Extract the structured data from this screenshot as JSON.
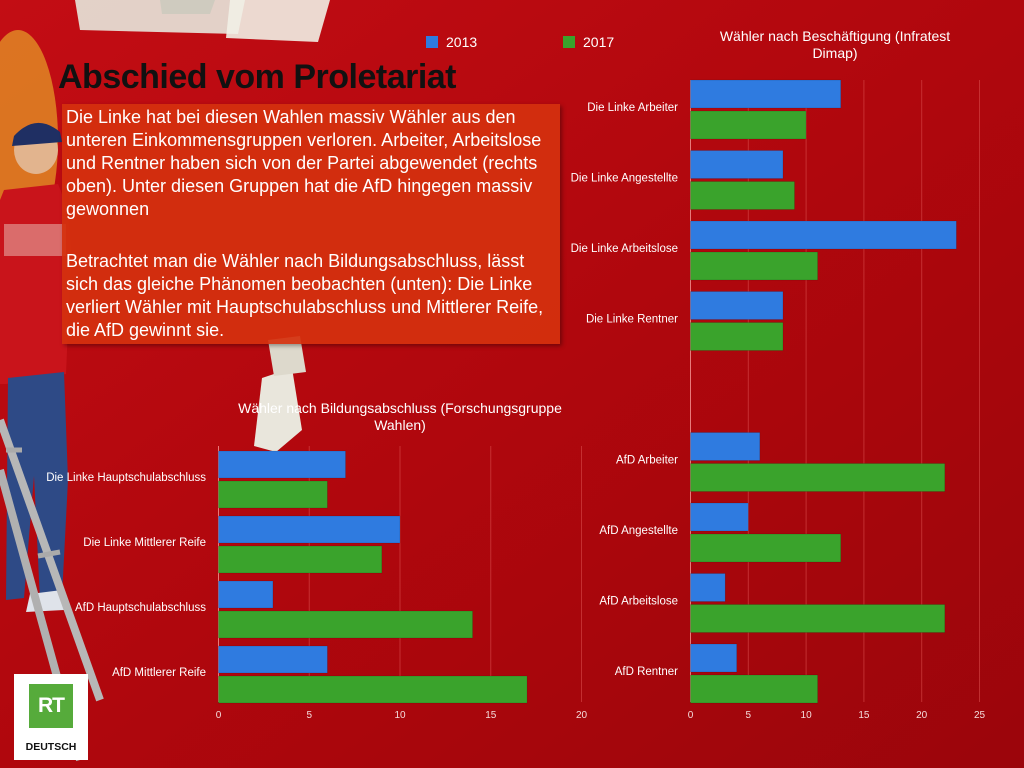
{
  "slide": {
    "title": "Abschied vom Proletariat",
    "paragraph1": "Die Linke hat bei diesen Wahlen massiv Wähler aus den unteren Einkommensgruppen verloren. Arbeiter, Arbeitslose und  Rentner haben sich von der Partei abgewendet (rechts oben). Unter diesen Gruppen hat die AfD hingegen massiv gewonnen",
    "paragraph2": "Betrachtet man die Wähler nach Bildungsabschluss, lässt sich das gleiche Phänomen beobachten (unten): Die Linke verliert Wähler mit Hauptschulabschluss und Mittlerer Reife, die AfD gewinnt sie."
  },
  "legend": [
    {
      "label": "2013",
      "color": "#2f7be0"
    },
    {
      "label": "2017",
      "color": "#3aa32c"
    }
  ],
  "logo": {
    "mark": "RT",
    "text": "DEUTSCH"
  },
  "colors": {
    "background": "#b5080f",
    "series_2013": "#2f7be0",
    "series_2017": "#3aa32c"
  },
  "chart_data": [
    {
      "type": "bar",
      "orientation": "horizontal",
      "title": "Wähler nach Beschäftigung (Infratest Dimap)",
      "categories": [
        "Die Linke Arbeiter",
        "Die Linke Angestellte",
        "Die Linke Arbeitslose",
        "Die Linke Rentner",
        "",
        "AfD Arbeiter",
        "AfD Angestellte",
        "AfD Arbeitslose",
        "AfD Rentner"
      ],
      "series": [
        {
          "name": "2013",
          "values": [
            13,
            8,
            23,
            8,
            null,
            6,
            5,
            3,
            4
          ]
        },
        {
          "name": "2017",
          "values": [
            10,
            9,
            11,
            8,
            null,
            22,
            13,
            22,
            11
          ]
        }
      ],
      "xlim": [
        0,
        25
      ],
      "xticks": [
        0,
        5,
        10,
        15,
        20,
        25
      ],
      "grid": true,
      "legend": "top"
    },
    {
      "type": "bar",
      "orientation": "horizontal",
      "title": "Wähler nach Bildungsabschluss (Forschungsgruppe Wahlen)",
      "categories": [
        "Die Linke Hauptschulabschluss",
        "Die Linke Mittlerer Reife",
        "AfD Hauptschulabschluss",
        "AfD Mittlerer Reife"
      ],
      "series": [
        {
          "name": "2013",
          "values": [
            7,
            10,
            3,
            6
          ]
        },
        {
          "name": "2017",
          "values": [
            6,
            9,
            14,
            17
          ]
        }
      ],
      "xlim": [
        0,
        20
      ],
      "xticks": [
        0,
        5,
        10,
        15,
        20
      ],
      "grid": true,
      "legend": "top"
    }
  ]
}
